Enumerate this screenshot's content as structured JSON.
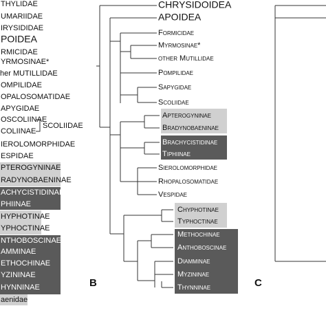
{
  "left_panel": {
    "labels": [
      "THYLIDAE",
      "UMARIIDAE",
      "IRYSIDIDAE",
      "POIDEA",
      "RMICIDAE",
      "YRMOSINAE*",
      "her MUTILLIDAE",
      "OMPILIDAE",
      "OPALOSOMATIDAE",
      "APYGIDAE",
      "OSCOLIINAE",
      "COLIINAE",
      "IEROLOMORPHIDAE",
      "ESPIDAE",
      "PTEROGYNINAE",
      "RADYNOBAENINAE",
      "ACHYCISTIDINAE",
      "PHIINAE",
      "HYPHOTINAE",
      "YPHOCTINAE",
      "NTHOBOSCINAE",
      "AMMINAE",
      "ETHOCHINAE",
      "YZININAE",
      "HYNNINAE",
      "aenidae"
    ],
    "group_label": "SCOLIIDAE"
  },
  "panel_b": {
    "letter": "B",
    "labels": [
      "CHRYSIDOIDEA",
      "APOIDEA",
      "Formicidae",
      "Myrmosinae*",
      "other Mutillidae",
      "Pompilidae",
      "Sapygidae",
      "Scoliidae",
      "Apterogyninae",
      "Bradynobaeninae",
      "Brachycistidinae",
      "Tiphiinae",
      "Sierolomorphidae",
      "Rhopalosomatidae",
      "Vespidae",
      "Chyphotinae",
      "Typhoctinae",
      "Methochinae",
      "Anthoboscinae",
      "Diamminae",
      "Myzininae",
      "Thynninae"
    ]
  },
  "panel_c": {
    "letter": "C"
  }
}
